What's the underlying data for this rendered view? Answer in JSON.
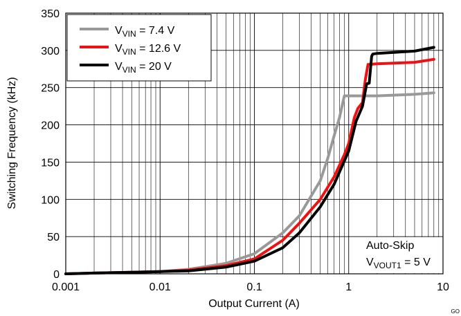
{
  "chart_data": {
    "type": "line",
    "xlabel": "Output Current (A)",
    "ylabel": "Switching Frequency (kHz)",
    "x_scale": "log",
    "xlim": [
      0.001,
      10
    ],
    "ylim": [
      0,
      350
    ],
    "x_ticks": [
      0.001,
      0.01,
      0.1,
      1,
      10
    ],
    "x_tick_labels": [
      "0.001",
      "0.01",
      "0.1",
      "1",
      "10"
    ],
    "y_ticks": [
      0,
      50,
      100,
      150,
      200,
      250,
      300,
      350
    ],
    "y_tick_labels": [
      "0",
      "50",
      "100",
      "150",
      "200",
      "250",
      "300",
      "350"
    ],
    "grid": true,
    "legend_position": "top-left",
    "legend_items": [
      {
        "prefix": "V",
        "sub": "VIN",
        "suffix": " = 7.4 V"
      },
      {
        "prefix": "V",
        "sub": "VIN",
        "suffix": " = 12.6 V"
      },
      {
        "prefix": "V",
        "sub": "VIN",
        "suffix": " = 20 V"
      }
    ],
    "series": [
      {
        "color": "#999999",
        "x": [
          0.001,
          0.002,
          0.005,
          0.01,
          0.02,
          0.05,
          0.1,
          0.2,
          0.3,
          0.5,
          0.6,
          0.7,
          0.8,
          0.9,
          1.0,
          2.0,
          5.0,
          8.0
        ],
        "y": [
          0,
          1,
          2,
          3,
          6,
          14,
          27,
          55,
          78,
          125,
          155,
          185,
          210,
          239,
          239,
          239,
          241,
          243
        ]
      },
      {
        "color": "#ee1111",
        "x": [
          0.001,
          0.002,
          0.005,
          0.01,
          0.02,
          0.05,
          0.1,
          0.2,
          0.3,
          0.5,
          0.7,
          0.9,
          1.0,
          1.15,
          1.25,
          1.4,
          1.5,
          1.6,
          2.0,
          5.0,
          8.0
        ],
        "y": [
          0,
          1,
          2,
          3,
          5,
          11,
          20,
          45,
          68,
          100,
          130,
          160,
          175,
          210,
          222,
          230,
          260,
          281,
          282,
          284,
          288
        ]
      },
      {
        "color": "#000000",
        "x": [
          0.001,
          0.002,
          0.005,
          0.01,
          0.02,
          0.05,
          0.1,
          0.2,
          0.3,
          0.5,
          0.7,
          1.0,
          1.2,
          1.4,
          1.55,
          1.65,
          1.75,
          1.8,
          2.0,
          5.0,
          8.0
        ],
        "y": [
          0,
          1,
          2,
          3,
          4,
          9,
          17,
          35,
          55,
          90,
          120,
          165,
          205,
          225,
          255,
          256,
          292,
          295,
          296,
          299,
          304
        ]
      }
    ],
    "annotation": {
      "line1": "Auto-Skip",
      "line2_prefix": "V",
      "line2_sub": "VOUT1",
      "line2_suffix": " = 5 V"
    },
    "figure_code": "GO"
  }
}
